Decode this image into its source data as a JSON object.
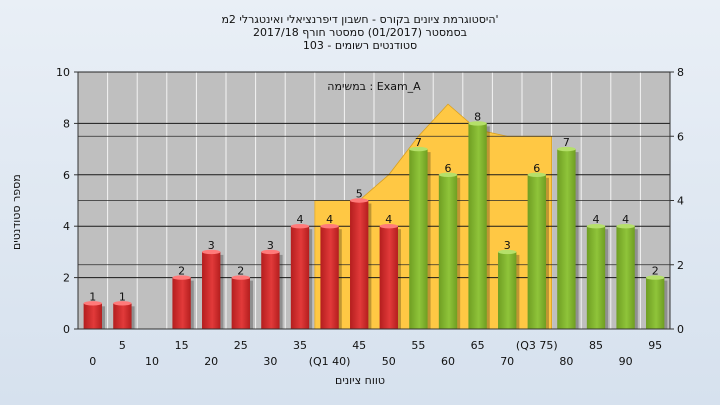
{
  "title_lines": [
    "היסטוגרמת ציונים בקורס - חשבון דיפרנציאלי ואינטגרלי 2מ'",
    "בסמסטר  (01/2017)  סמסטר חורף 2017/18",
    "סטודנטים רשומים - 103"
  ],
  "annotation": "במשימה : Exam_A",
  "colors": {
    "fail": "#e23a3a",
    "pass": "#8fc43a",
    "area": "#ffc844",
    "plot_bg": "#bfbfbf"
  },
  "chart_data": {
    "type": "bar",
    "xlabel": "טווח ציונים",
    "ylabel": "מספר סטודנטים",
    "ylim": [
      0,
      10
    ],
    "y2lim": [
      0,
      8
    ],
    "yticks": [
      0,
      2,
      4,
      6,
      8,
      10
    ],
    "y2ticks": [
      0,
      2,
      4,
      6,
      8
    ],
    "grid": true,
    "categories": [
      "0",
      "5",
      "10",
      "15",
      "20",
      "25",
      "30",
      "35",
      "40",
      "45",
      "50",
      "55",
      "60",
      "65",
      "70",
      "75",
      "80",
      "85",
      "90",
      "95"
    ],
    "x_tick_labels": [
      "0",
      "5",
      "10",
      "15",
      "20",
      "25",
      "30",
      "35",
      "(Q1 40)",
      "45",
      "50",
      "55",
      "60",
      "65",
      "70",
      "(Q3 75)",
      "80",
      "85",
      "90",
      "95"
    ],
    "series": [
      {
        "values": [
          1,
          1,
          null,
          2,
          3,
          2,
          3,
          4,
          4,
          5,
          4,
          7,
          6,
          8,
          3,
          6,
          7,
          4,
          4,
          2
        ],
        "labels": [
          "1",
          "1",
          "",
          "2",
          "3",
          "2",
          "3",
          "4",
          "4",
          "5",
          "4",
          "7",
          "6",
          "8",
          "3",
          "6",
          "7",
          "4",
          "4",
          "2"
        ]
      }
    ],
    "fail_below": 55,
    "quartile_area": {
      "description": "Interquartile range band on secondary axis",
      "x": [
        40,
        45,
        50,
        55,
        60,
        65,
        70,
        75
      ],
      "y2": [
        4.0,
        4.0,
        4.8,
        6.0,
        7.0,
        6.2,
        6.0,
        6.0
      ]
    }
  }
}
